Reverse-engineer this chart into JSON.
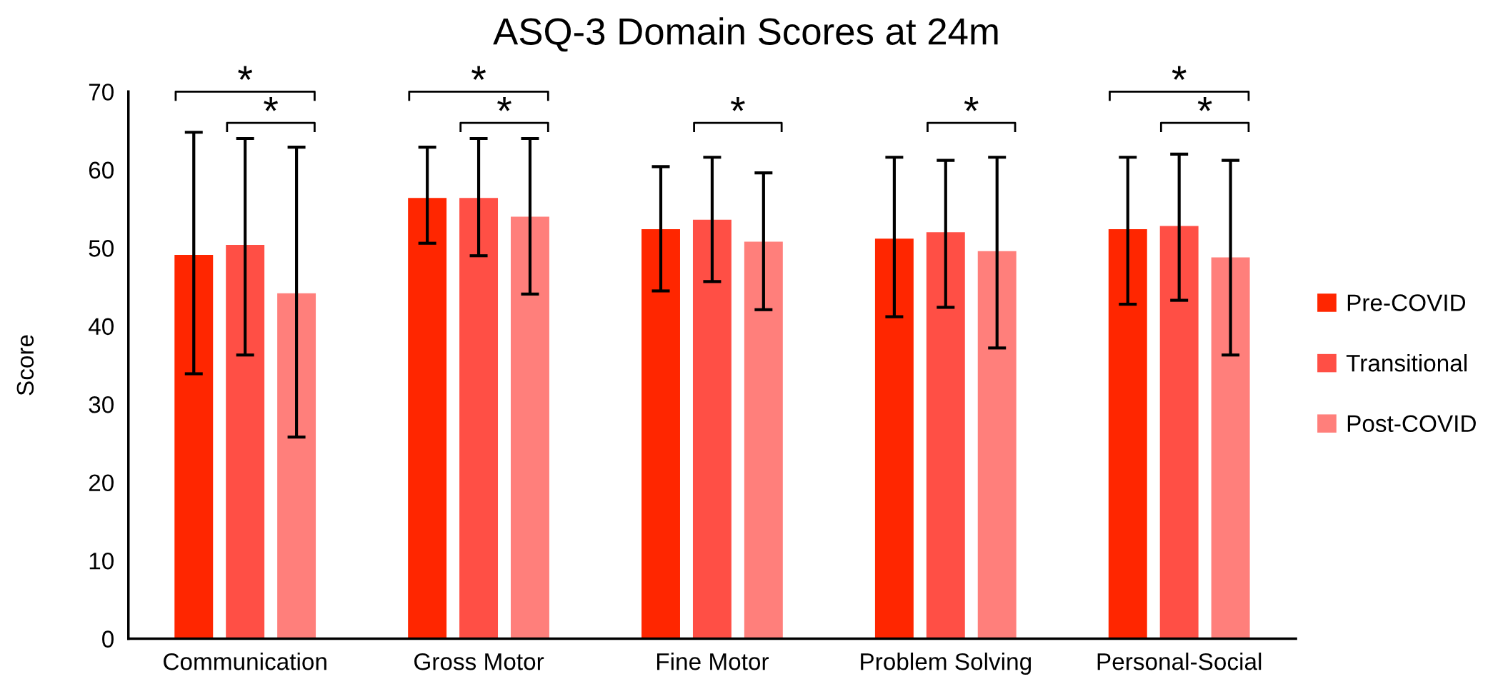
{
  "chart_data": {
    "type": "bar",
    "title": "ASQ-3 Domain Scores at 24m",
    "ylabel": "Score",
    "categories": [
      "Communication",
      "Gross Motor",
      "Fine Motor",
      "Problem Solving",
      "Personal-Social"
    ],
    "series": [
      {
        "name": "Pre-COVID",
        "color": "#ff2600",
        "values": [
          49.1,
          56.4,
          52.4,
          51.2,
          52.4
        ],
        "errors": [
          [
            33.9,
            64.8
          ],
          [
            50.6,
            62.9
          ],
          [
            44.5,
            60.4
          ],
          [
            41.2,
            61.6
          ],
          [
            42.8,
            61.6
          ]
        ]
      },
      {
        "name": "Transitional",
        "color": "#ff4f45",
        "values": [
          50.4,
          56.4,
          53.6,
          52.0,
          52.8
        ],
        "errors": [
          [
            36.3,
            64.0
          ],
          [
            49.0,
            64.0
          ],
          [
            45.7,
            61.6
          ],
          [
            42.4,
            61.2
          ],
          [
            43.3,
            62.0
          ]
        ]
      },
      {
        "name": "Post-COVID",
        "color": "#ff7f7b",
        "values": [
          44.2,
          54.0,
          50.8,
          49.6,
          48.8
        ],
        "errors": [
          [
            25.8,
            62.9
          ],
          [
            44.1,
            64.0
          ],
          [
            42.1,
            59.6
          ],
          [
            37.2,
            61.6
          ],
          [
            36.3,
            61.2
          ]
        ]
      }
    ],
    "ylim": [
      0,
      70
    ],
    "yticks": [
      0,
      10,
      20,
      30,
      40,
      50,
      60,
      70
    ],
    "grid": false,
    "legend": "right",
    "annotations": [
      "*",
      "*",
      "*",
      "*",
      "*",
      "*",
      "*",
      "*"
    ]
  }
}
